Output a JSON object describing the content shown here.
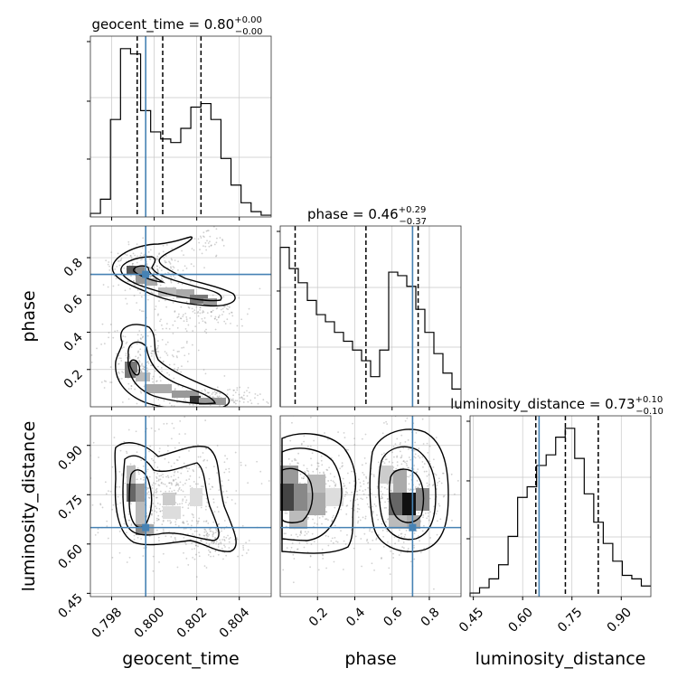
{
  "chart_data": {
    "type": "corner",
    "truth_color": "#4682b4",
    "contour_color": "#000000",
    "axes": {
      "geocent_time": {
        "label": "geocent_time",
        "lim": [
          0.797,
          0.8055
        ],
        "ticks": [
          0.798,
          0.8,
          0.802,
          0.804
        ],
        "tick_labels": [
          "0.798",
          "0.800",
          "0.802",
          "0.804"
        ],
        "truth": 0.7996,
        "title_base": "geocent_time = 0.80",
        "title_sup": "+0.00",
        "title_sub": "−0.00",
        "quantiles": [
          0.7992,
          0.8004,
          0.8022
        ]
      },
      "phase": {
        "label": "phase",
        "lim": [
          0.0,
          0.97
        ],
        "ticks": [
          0.2,
          0.4,
          0.6,
          0.8
        ],
        "tick_labels": [
          "0.2",
          "0.4",
          "0.6",
          "0.8"
        ],
        "truth": 0.71,
        "title_base": "phase = 0.46",
        "title_sup": "+0.29",
        "title_sub": "−0.37",
        "quantiles": [
          0.08,
          0.46,
          0.74
        ]
      },
      "luminosity_distance": {
        "label": "luminosity_distance",
        "lim": [
          0.44,
          0.99
        ],
        "ticks": [
          0.45,
          0.6,
          0.75,
          0.9
        ],
        "tick_labels": [
          "0.45",
          "0.60",
          "0.75",
          "0.90"
        ],
        "truth": 0.65,
        "title_base": "luminosity_distance = 0.73",
        "title_sup": "+0.10",
        "title_sub": "−0.10",
        "quantiles": [
          0.64,
          0.73,
          0.83
        ]
      }
    },
    "histograms": {
      "geocent_time": [
        0.02,
        0.1,
        0.55,
        0.95,
        0.92,
        0.6,
        0.48,
        0.44,
        0.42,
        0.5,
        0.62,
        0.64,
        0.55,
        0.33,
        0.18,
        0.08,
        0.03,
        0.01
      ],
      "phase": [
        0.9,
        0.78,
        0.7,
        0.6,
        0.52,
        0.48,
        0.42,
        0.37,
        0.32,
        0.26,
        0.17,
        0.32,
        0.76,
        0.74,
        0.68,
        0.55,
        0.42,
        0.3,
        0.19,
        0.1
      ],
      "luminosity_distance": [
        0.02,
        0.05,
        0.1,
        0.18,
        0.34,
        0.56,
        0.62,
        0.74,
        0.8,
        0.9,
        0.95,
        0.78,
        0.58,
        0.42,
        0.3,
        0.2,
        0.12,
        0.1,
        0.06
      ]
    }
  }
}
